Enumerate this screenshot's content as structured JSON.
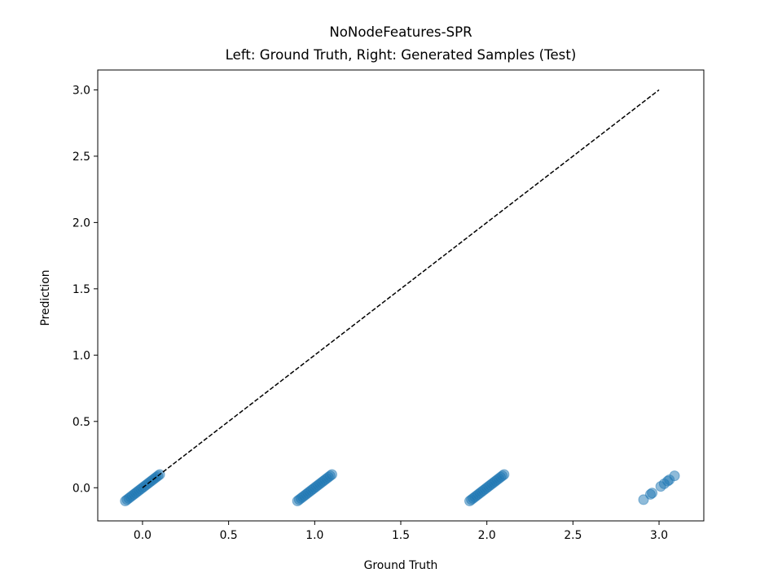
{
  "chart_data": {
    "type": "scatter",
    "title": "NoNodeFeatures-SPR",
    "subtitle": "Left: Ground Truth, Right: Generated Samples (Test)",
    "xlabel": "Ground Truth",
    "ylabel": "Prediction",
    "xlim": [
      -0.26,
      3.26
    ],
    "ylim": [
      -0.25,
      3.15
    ],
    "xticks": [
      "0.0",
      "0.5",
      "1.0",
      "1.5",
      "2.0",
      "2.5",
      "3.0"
    ],
    "yticks": [
      "0.0",
      "0.5",
      "1.0",
      "1.5",
      "2.0",
      "2.5",
      "3.0"
    ],
    "grid": false,
    "legend": "none",
    "marker_color": "#1f77b4",
    "reference_line": {
      "style": "dashed",
      "color": "#000000",
      "x": [
        0,
        3
      ],
      "y": [
        0,
        3
      ]
    },
    "series": [
      {
        "points": [
          [
            -0.1,
            -0.1
          ],
          [
            -0.09,
            -0.09
          ],
          [
            -0.08,
            -0.08
          ],
          [
            -0.07,
            -0.07
          ],
          [
            -0.06,
            -0.06
          ],
          [
            -0.05,
            -0.05
          ],
          [
            -0.04,
            -0.04
          ],
          [
            -0.03,
            -0.03
          ],
          [
            -0.02,
            -0.02
          ],
          [
            -0.01,
            -0.01
          ],
          [
            0.0,
            0.0
          ],
          [
            0.01,
            0.01
          ],
          [
            0.02,
            0.02
          ],
          [
            0.03,
            0.03
          ],
          [
            0.04,
            0.04
          ],
          [
            0.05,
            0.05
          ],
          [
            0.06,
            0.06
          ],
          [
            0.07,
            0.07
          ],
          [
            0.08,
            0.08
          ],
          [
            0.09,
            0.09
          ],
          [
            0.1,
            0.1
          ],
          [
            0.9,
            -0.1
          ],
          [
            0.91,
            -0.09
          ],
          [
            0.92,
            -0.08
          ],
          [
            0.93,
            -0.07
          ],
          [
            0.94,
            -0.06
          ],
          [
            0.95,
            -0.05
          ],
          [
            0.96,
            -0.04
          ],
          [
            0.97,
            -0.03
          ],
          [
            0.98,
            -0.02
          ],
          [
            0.99,
            -0.01
          ],
          [
            1.0,
            0.0
          ],
          [
            1.01,
            0.01
          ],
          [
            1.02,
            0.02
          ],
          [
            1.03,
            0.03
          ],
          [
            1.04,
            0.04
          ],
          [
            1.05,
            0.05
          ],
          [
            1.06,
            0.06
          ],
          [
            1.07,
            0.07
          ],
          [
            1.08,
            0.08
          ],
          [
            1.09,
            0.09
          ],
          [
            1.1,
            0.1
          ],
          [
            1.9,
            -0.1
          ],
          [
            1.91,
            -0.09
          ],
          [
            1.92,
            -0.08
          ],
          [
            1.93,
            -0.07
          ],
          [
            1.94,
            -0.06
          ],
          [
            1.95,
            -0.05
          ],
          [
            1.96,
            -0.04
          ],
          [
            1.97,
            -0.03
          ],
          [
            1.98,
            -0.02
          ],
          [
            1.99,
            -0.01
          ],
          [
            2.0,
            0.0
          ],
          [
            2.01,
            0.01
          ],
          [
            2.02,
            0.02
          ],
          [
            2.03,
            0.03
          ],
          [
            2.04,
            0.04
          ],
          [
            2.05,
            0.05
          ],
          [
            2.06,
            0.06
          ],
          [
            2.07,
            0.07
          ],
          [
            2.08,
            0.08
          ],
          [
            2.09,
            0.09
          ],
          [
            2.1,
            0.1
          ],
          [
            2.91,
            -0.09
          ],
          [
            2.95,
            -0.05
          ],
          [
            2.96,
            -0.04
          ],
          [
            3.01,
            0.01
          ],
          [
            3.03,
            0.03
          ],
          [
            3.05,
            0.05
          ],
          [
            3.06,
            0.06
          ],
          [
            3.09,
            0.09
          ]
        ]
      }
    ]
  }
}
